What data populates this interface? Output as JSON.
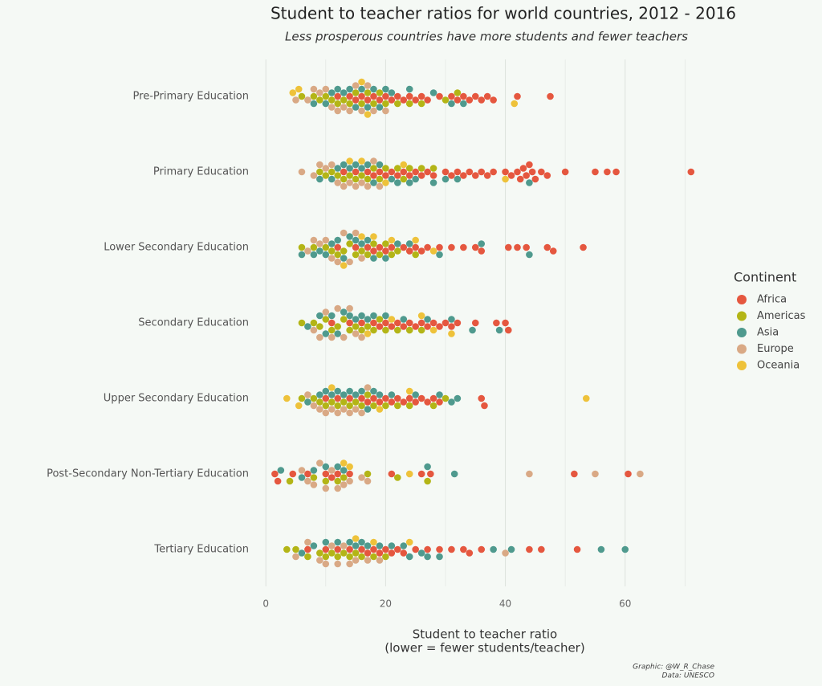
{
  "chart_data": {
    "type": "beeswarm",
    "title": "Student to teacher ratios for world countries, 2012 - 2016",
    "subtitle": "Less prosperous countries have more students and fewer teachers",
    "xlabel": [
      "Student to teacher ratio",
      "(lower = fewer students/teacher)"
    ],
    "caption": [
      "Graphic: @W_R_Chase",
      "Data: UNESCO"
    ],
    "legend_title": "Continent",
    "legend_position": "right",
    "grid": true,
    "xlim": [
      -1.5,
      72.5
    ],
    "xticks": [
      0,
      20,
      40,
      60
    ],
    "x_minor_gridlines": [
      10,
      30,
      50,
      70
    ],
    "categories": [
      "Pre-Primary Education",
      "Primary Education",
      "Lower Secondary Education",
      "Secondary Education",
      "Upper Secondary Education",
      "Post-Secondary Non-Tertiary Education",
      "Tertiary Education"
    ],
    "series": [
      {
        "name": "Africa",
        "color": "#e5573f",
        "values": [
          [
            12,
            14,
            15,
            16,
            17,
            18,
            19,
            20,
            21,
            22,
            23,
            24,
            25,
            26,
            27,
            29,
            31,
            32,
            33,
            34,
            35,
            36,
            37,
            38,
            42,
            47.5
          ],
          [
            13,
            15,
            17,
            18,
            19,
            20,
            21,
            22,
            23,
            24,
            25,
            26,
            27,
            28,
            30,
            31,
            32,
            33,
            34,
            35,
            36,
            37,
            38,
            40,
            41,
            42,
            42.5,
            43,
            43.5,
            44,
            44.5,
            45,
            46,
            47,
            50,
            55,
            57,
            58.5,
            71
          ],
          [
            12,
            15,
            17,
            18,
            19,
            20,
            21,
            23,
            24,
            25,
            26,
            27,
            29,
            31,
            33,
            35,
            36,
            40.5,
            42,
            43.5,
            47,
            48,
            53
          ],
          [
            11,
            14,
            16,
            18,
            19,
            20,
            21,
            22,
            23,
            24,
            25,
            26,
            27,
            28,
            29,
            30,
            31,
            32,
            35,
            38.5,
            40,
            40.5
          ],
          [
            10,
            12,
            14,
            16,
            17,
            18,
            19,
            20,
            21,
            22,
            23,
            24,
            25,
            26,
            27,
            28,
            29,
            36,
            36.5
          ],
          [
            1.5,
            2,
            4.5,
            7,
            10,
            11,
            12,
            14,
            21,
            26,
            27.5,
            51.5,
            60.5
          ],
          [
            7,
            10,
            12,
            14,
            16,
            17,
            18,
            19,
            20,
            21,
            22,
            23,
            25,
            27,
            29,
            31,
            33,
            34,
            36,
            44,
            46,
            52
          ]
        ]
      },
      {
        "name": "Americas",
        "color": "#b3b516",
        "values": [
          [
            6,
            8,
            9,
            10,
            11,
            12,
            13,
            14,
            15,
            16,
            17,
            18,
            19,
            20,
            22,
            24,
            26,
            30,
            32
          ],
          [
            9,
            10,
            11,
            12,
            13,
            14,
            15,
            16,
            17,
            18,
            19,
            20,
            22,
            23,
            24,
            26,
            28
          ],
          [
            6,
            8,
            10,
            11,
            12,
            13,
            14,
            15,
            16,
            17,
            18,
            19,
            20,
            21,
            22,
            25
          ],
          [
            6,
            8,
            9,
            10,
            11,
            12,
            13,
            14,
            15,
            16,
            17,
            18,
            19,
            20,
            22,
            24,
            26
          ],
          [
            6,
            8,
            9,
            10,
            11,
            12,
            13,
            14,
            15,
            16,
            17,
            18,
            20,
            22,
            24,
            28,
            30
          ],
          [
            4,
            8,
            10,
            12,
            13,
            17,
            22,
            27
          ],
          [
            3.5,
            5,
            7,
            9,
            10,
            11,
            12,
            13,
            14,
            15,
            16,
            18,
            20
          ]
        ]
      },
      {
        "name": "Asia",
        "color": "#4f9a8e",
        "values": [
          [
            8,
            10,
            11,
            12,
            13,
            14,
            15,
            16,
            17,
            18,
            19,
            20,
            21,
            24,
            28,
            31,
            33
          ],
          [
            9,
            11,
            12,
            13,
            14,
            15,
            16,
            17,
            18,
            19,
            21,
            22,
            24,
            25,
            28,
            30,
            32,
            44
          ],
          [
            6,
            8,
            9,
            10,
            11,
            12,
            13,
            14,
            15,
            16,
            17,
            18,
            20,
            22,
            24,
            29,
            36,
            44
          ],
          [
            7,
            9,
            10,
            11,
            12,
            13,
            14,
            15,
            16,
            17,
            18,
            20,
            23,
            27,
            31,
            34.5,
            39
          ],
          [
            7,
            9,
            10,
            11,
            12,
            13,
            14,
            15,
            16,
            17,
            18,
            19,
            21,
            25,
            29,
            31,
            32
          ],
          [
            2.5,
            6,
            8,
            10,
            12,
            13,
            27,
            31.5
          ],
          [
            6,
            8,
            10,
            12,
            14,
            15,
            16,
            17,
            19,
            21,
            23,
            24,
            26,
            27,
            29,
            38,
            41,
            56,
            60
          ]
        ]
      },
      {
        "name": "Europe",
        "color": "#d9a985",
        "values": [
          [
            5,
            7,
            8,
            9,
            10,
            11,
            12,
            13,
            14,
            15,
            16,
            17,
            18,
            20
          ],
          [
            6,
            8,
            9,
            10,
            11,
            12,
            13,
            14,
            15,
            16,
            17,
            18,
            19
          ],
          [
            7,
            8,
            9,
            10,
            11,
            12,
            13,
            14,
            15,
            16
          ],
          [
            8,
            9,
            10,
            11,
            12,
            13,
            14,
            15,
            16
          ],
          [
            7,
            8,
            9,
            10,
            11,
            12,
            13,
            14,
            15,
            16,
            17
          ],
          [
            6,
            7,
            8,
            9,
            10,
            11,
            12,
            13,
            14,
            16,
            17,
            44,
            55,
            62.5
          ],
          [
            5,
            7,
            9,
            10,
            11,
            12,
            13,
            14,
            15,
            17,
            19,
            40
          ]
        ]
      },
      {
        "name": "Oceania",
        "color": "#eec23a",
        "values": [
          [
            4.5,
            5.5,
            16,
            17,
            41.5
          ],
          [
            14,
            16,
            20,
            23,
            40
          ],
          [
            13,
            16,
            18,
            21,
            25,
            28
          ],
          [
            17,
            21,
            26,
            28,
            31
          ],
          [
            3.5,
            5.5,
            11,
            19,
            24,
            53.5
          ],
          [
            13,
            14,
            24
          ],
          [
            15,
            18,
            24
          ]
        ]
      }
    ]
  }
}
